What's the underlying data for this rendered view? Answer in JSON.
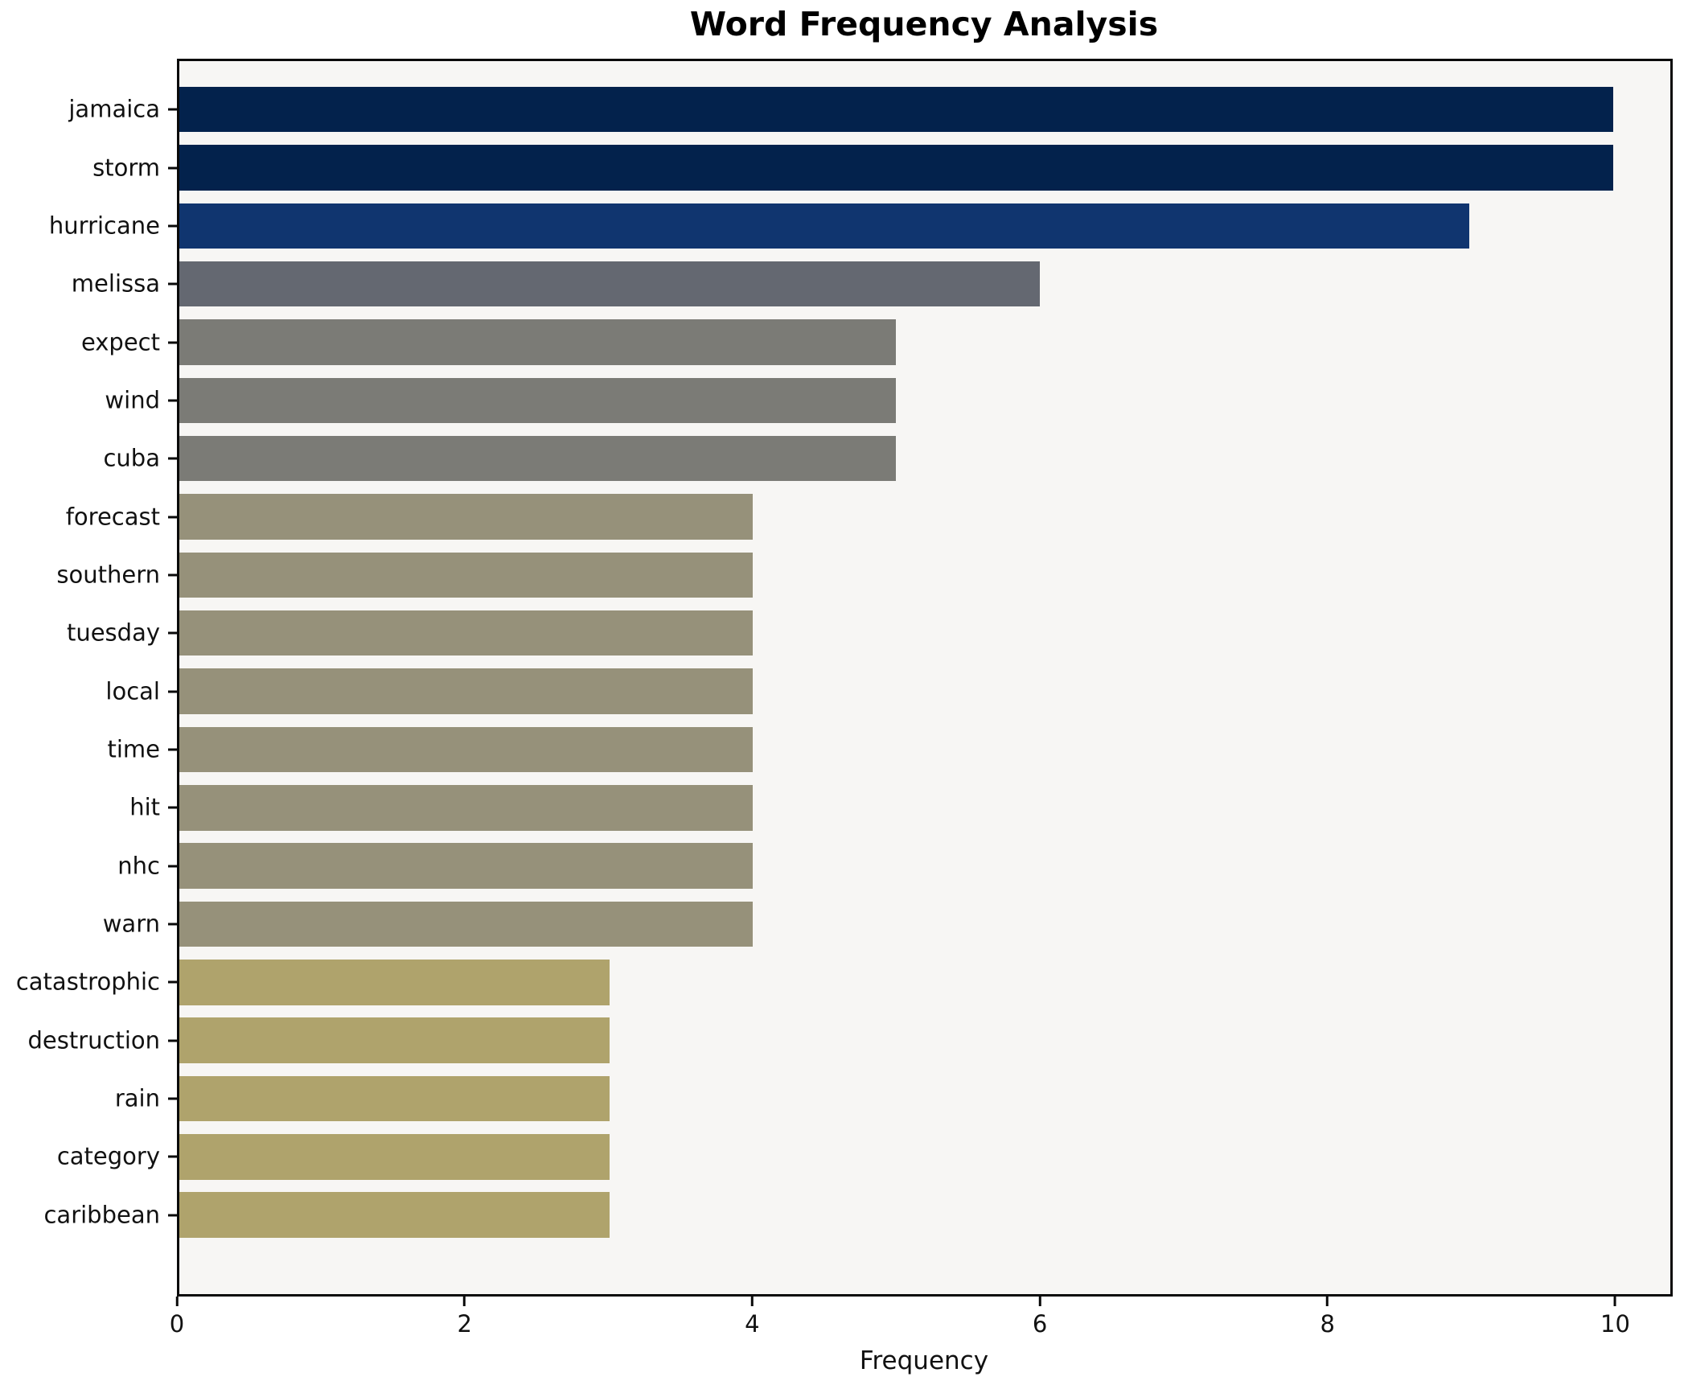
{
  "chart": {
    "title": "Word Frequency Analysis",
    "xlabel": "Frequency"
  },
  "chart_data": {
    "type": "bar",
    "orientation": "horizontal",
    "title": "Word Frequency Analysis",
    "xlabel": "Frequency",
    "ylabel": "",
    "categories": [
      "jamaica",
      "storm",
      "hurricane",
      "melissa",
      "expect",
      "wind",
      "cuba",
      "forecast",
      "southern",
      "tuesday",
      "local",
      "time",
      "hit",
      "nhc",
      "warn",
      "catastrophic",
      "destruction",
      "rain",
      "category",
      "caribbean"
    ],
    "values": [
      10,
      10,
      9,
      6,
      5,
      5,
      5,
      4,
      4,
      4,
      4,
      4,
      4,
      4,
      4,
      3,
      3,
      3,
      3,
      3
    ],
    "bar_colors": [
      "#03224c",
      "#03224c",
      "#10356f",
      "#646871",
      "#7b7b76",
      "#7b7b76",
      "#7b7b76",
      "#96917a",
      "#96917a",
      "#96917a",
      "#96917a",
      "#96917a",
      "#96917a",
      "#96917a",
      "#96917a",
      "#afa36c",
      "#afa36c",
      "#afa36c",
      "#afa36c",
      "#afa36c"
    ],
    "x_ticks": [
      0,
      2,
      4,
      6,
      8,
      10
    ],
    "xlim": [
      0,
      10.4
    ],
    "grid": false,
    "legend": null,
    "plot_background": "#f7f6f4",
    "figure_background": "#ffffff",
    "spine_color": "#0a0a0a"
  }
}
